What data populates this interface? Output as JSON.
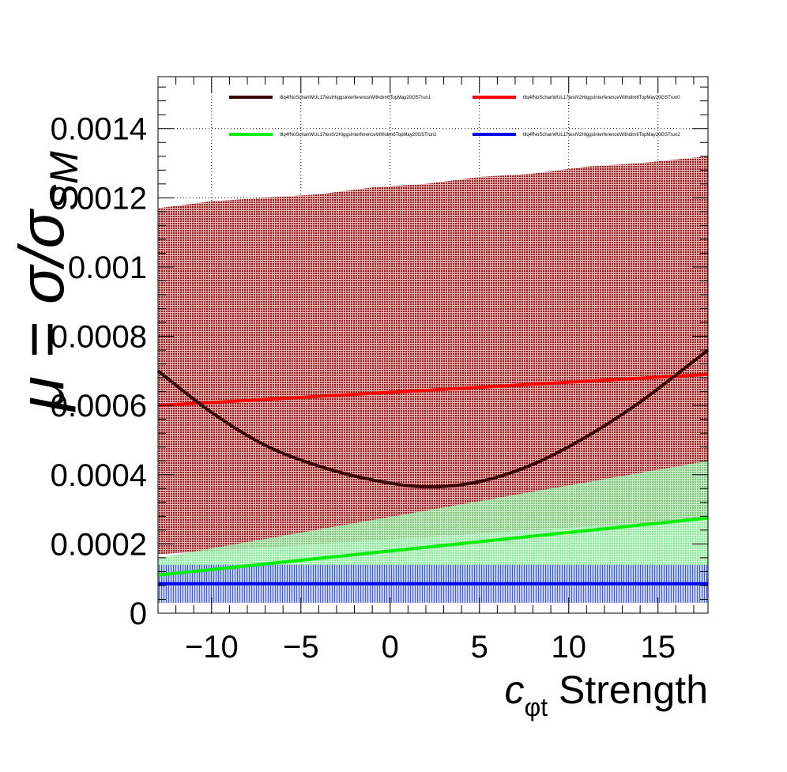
{
  "chart_data": {
    "type": "line",
    "xlabel_var": "c",
    "xlabel_sub": "φt",
    "xlabel_rest": " Strength",
    "ylabel": "μ = σ/σ",
    "ylabel_sub": "SM",
    "xlim": [
      -13,
      17.8
    ],
    "ylim": [
      0,
      0.00155
    ],
    "x_ticks": [
      -10,
      -5,
      0,
      5,
      10,
      15
    ],
    "x_tick_labels": [
      "−10",
      "−5",
      "0",
      "5",
      "10",
      "15"
    ],
    "y_ticks": [
      0,
      0.0002,
      0.0004,
      0.0006,
      0.0008,
      0.001,
      0.0012,
      0.0014
    ],
    "y_tick_labels": [
      "0",
      "0.0002",
      "0.0004",
      "0.0006",
      "0.0008",
      "0.001",
      "0.0012",
      "0.0014"
    ],
    "grid": true,
    "legend_position": "top",
    "series": [
      {
        "name": "tllq4fNoSchanWUL17testHiggsInterferenceWithdim6TopMay20GSTrun1",
        "color": "#3a0000",
        "x": [
          -13,
          -10,
          -7,
          -4,
          -1,
          2,
          5,
          8,
          11,
          14,
          17.8
        ],
        "y": [
          0.0007,
          0.00058,
          0.000485,
          0.000425,
          0.000385,
          0.000365,
          0.00038,
          0.00043,
          0.00051,
          0.00061,
          0.00076
        ],
        "band_lower": [
          0.00017,
          0.00018,
          0.00019,
          0.0002,
          0.00021,
          0.00022,
          0.00023,
          0.00024,
          0.00025,
          0.00026,
          0.00027
        ],
        "band_upper": [
          0.00117,
          0.00119,
          0.0012,
          0.00121,
          0.00123,
          0.00124,
          0.00126,
          0.00127,
          0.00129,
          0.0013,
          0.00132
        ],
        "band_color": "#8b0000"
      },
      {
        "name": "tllq4fNoSchanWUL17testV2HiggsInterferenceWithdim6TopMay20GSTrun0",
        "color": "#ff0000",
        "x": [
          -13,
          17.8
        ],
        "y": [
          0.0006,
          0.00069
        ]
      },
      {
        "name": "tllq4fNoSchanWUL17testV2HiggsInterferenceWithdim6TopMay20GSTrun1",
        "color": "#00ee00",
        "x": [
          -13,
          17.8
        ],
        "y": [
          0.00011,
          0.000275
        ],
        "band_lower": [
          8e-05,
          8e-05
        ],
        "band_upper": [
          0.00016,
          0.00044
        ],
        "band_color": "#80e890"
      },
      {
        "name": "tllq4fNoSchanWUL17testV2HiggsInterferenceWithdim6TopMay20GSTrun2",
        "color": "#0000ee",
        "x": [
          -13,
          17.8
        ],
        "y": [
          8.5e-05,
          8.5e-05
        ],
        "band_lower": [
          3e-05,
          3e-05
        ],
        "band_upper": [
          0.00014,
          0.00014
        ],
        "band_color": "#4060e8"
      }
    ]
  }
}
